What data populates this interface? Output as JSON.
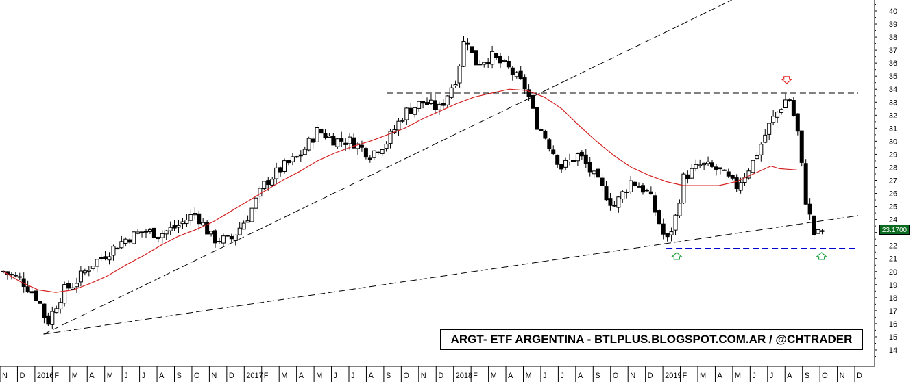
{
  "watermark": "ARGT- ETF ARGENTINA - BTLPLUS.BLOGSPOT.COM.AR / @CHTRADER",
  "last_price_label": "23.1700",
  "chart_data": {
    "type": "candlestick",
    "title": "ARGT- ETF ARGENTINA - BTLPLUS.BLOGSPOT.COM.AR / @CHTRADER",
    "ylim": [
      13.5,
      40.5
    ],
    "y_ticks": [
      14,
      15,
      16,
      17,
      18,
      19,
      20,
      21,
      22,
      23,
      24,
      25,
      26,
      27,
      28,
      29,
      30,
      31,
      32,
      33,
      34,
      35,
      36,
      37,
      38,
      39,
      40
    ],
    "grid": false,
    "last_price": 23.17,
    "months": [
      {
        "label": "N",
        "year": null
      },
      {
        "label": "D",
        "year": null
      },
      {
        "label": "2016",
        "year": true
      },
      {
        "label": "F",
        "year": null
      },
      {
        "label": "M",
        "year": null
      },
      {
        "label": "A",
        "year": null
      },
      {
        "label": "M",
        "year": null
      },
      {
        "label": "J",
        "year": null
      },
      {
        "label": "J",
        "year": null
      },
      {
        "label": "A",
        "year": null
      },
      {
        "label": "S",
        "year": null
      },
      {
        "label": "O",
        "year": null
      },
      {
        "label": "N",
        "year": null
      },
      {
        "label": "D",
        "year": null
      },
      {
        "label": "2017",
        "year": true
      },
      {
        "label": "F",
        "year": null
      },
      {
        "label": "M",
        "year": null
      },
      {
        "label": "A",
        "year": null
      },
      {
        "label": "M",
        "year": null
      },
      {
        "label": "J",
        "year": null
      },
      {
        "label": "J",
        "year": null
      },
      {
        "label": "A",
        "year": null
      },
      {
        "label": "S",
        "year": null
      },
      {
        "label": "O",
        "year": null
      },
      {
        "label": "N",
        "year": null
      },
      {
        "label": "D",
        "year": null
      },
      {
        "label": "2018",
        "year": true
      },
      {
        "label": "F",
        "year": null
      },
      {
        "label": "M",
        "year": null
      },
      {
        "label": "A",
        "year": null
      },
      {
        "label": "M",
        "year": null
      },
      {
        "label": "J",
        "year": null
      },
      {
        "label": "J",
        "year": null
      },
      {
        "label": "A",
        "year": null
      },
      {
        "label": "S",
        "year": null
      },
      {
        "label": "O",
        "year": null
      },
      {
        "label": "N",
        "year": null
      },
      {
        "label": "D",
        "year": null
      },
      {
        "label": "2019",
        "year": true
      },
      {
        "label": "F",
        "year": null
      },
      {
        "label": "M",
        "year": null
      },
      {
        "label": "A",
        "year": null
      },
      {
        "label": "M",
        "year": null
      },
      {
        "label": "J",
        "year": null
      },
      {
        "label": "J",
        "year": null
      },
      {
        "label": "A",
        "year": null
      },
      {
        "label": "S",
        "year": null
      },
      {
        "label": "O",
        "year": null
      },
      {
        "label": "N",
        "year": null
      },
      {
        "label": "D",
        "year": null
      }
    ],
    "close_path": [
      [
        0,
        20.0
      ],
      [
        1,
        19.4
      ],
      [
        2,
        17.9
      ],
      [
        2.5,
        16.0
      ],
      [
        3,
        17.4
      ],
      [
        3.5,
        18.6
      ],
      [
        4,
        19.0
      ],
      [
        5,
        20.5
      ],
      [
        6,
        21.5
      ],
      [
        7,
        22.5
      ],
      [
        8,
        23.1
      ],
      [
        9,
        22.9
      ],
      [
        10,
        23.5
      ],
      [
        11,
        24.5
      ],
      [
        12,
        22.5
      ],
      [
        13,
        22.4
      ],
      [
        14,
        24.2
      ],
      [
        14.5,
        25.5
      ],
      [
        15,
        26.8
      ],
      [
        16,
        28.0
      ],
      [
        17,
        28.9
      ],
      [
        18,
        30.8
      ],
      [
        19,
        30.1
      ],
      [
        20,
        30.0
      ],
      [
        21,
        29.0
      ],
      [
        22,
        30.0
      ],
      [
        23,
        32.2
      ],
      [
        24,
        33.0
      ],
      [
        25,
        32.5
      ],
      [
        26,
        35.0
      ],
      [
        26.5,
        38.3
      ],
      [
        27,
        36.0
      ],
      [
        28,
        36.5
      ],
      [
        29,
        35.5
      ],
      [
        30,
        34.0
      ],
      [
        30.5,
        31.5
      ],
      [
        31,
        30.5
      ],
      [
        32,
        28.0
      ],
      [
        33,
        29.0
      ],
      [
        34,
        27.0
      ],
      [
        35,
        25.0
      ],
      [
        36,
        27.0
      ],
      [
        37,
        26.0
      ],
      [
        38,
        22.2
      ],
      [
        38.5,
        24.0
      ],
      [
        39,
        27.2
      ],
      [
        40,
        28.2
      ],
      [
        41,
        27.8
      ],
      [
        42,
        26.5
      ],
      [
        43,
        28.5
      ],
      [
        44,
        31.5
      ],
      [
        45,
        33.5
      ],
      [
        45.5,
        31.0
      ],
      [
        46,
        25.5
      ],
      [
        46.5,
        22.7
      ],
      [
        47,
        23.17
      ]
    ],
    "ma_path": [
      [
        0,
        20.0
      ],
      [
        1,
        19.2
      ],
      [
        2,
        18.6
      ],
      [
        3,
        18.4
      ],
      [
        4,
        18.6
      ],
      [
        5,
        19.1
      ],
      [
        6,
        19.7
      ],
      [
        7,
        20.5
      ],
      [
        8,
        21.2
      ],
      [
        9,
        22.0
      ],
      [
        10,
        22.7
      ],
      [
        11,
        23.2
      ],
      [
        12,
        23.8
      ],
      [
        13,
        24.6
      ],
      [
        14,
        25.4
      ],
      [
        15,
        26.2
      ],
      [
        16,
        27.0
      ],
      [
        17,
        27.7
      ],
      [
        18,
        28.5
      ],
      [
        19,
        29.1
      ],
      [
        20,
        29.6
      ],
      [
        21,
        30.0
      ],
      [
        22,
        30.5
      ],
      [
        23,
        31.0
      ],
      [
        24,
        31.7
      ],
      [
        25,
        32.3
      ],
      [
        26,
        32.9
      ],
      [
        27,
        33.4
      ],
      [
        28,
        33.7
      ],
      [
        29,
        34.0
      ],
      [
        30,
        33.9
      ],
      [
        31,
        33.4
      ],
      [
        32,
        32.5
      ],
      [
        33,
        31.2
      ],
      [
        34,
        30.0
      ],
      [
        35,
        28.9
      ],
      [
        36,
        28.0
      ],
      [
        37,
        27.4
      ],
      [
        38,
        26.9
      ],
      [
        39,
        26.6
      ],
      [
        40,
        26.6
      ],
      [
        41,
        26.6
      ],
      [
        42,
        26.9
      ],
      [
        43,
        27.5
      ],
      [
        44,
        28.1
      ],
      [
        44.5,
        27.9
      ],
      [
        45.5,
        27.8
      ]
    ],
    "lines": [
      {
        "name": "resistance",
        "kind": "horizontal",
        "value": 33.7,
        "from": 22,
        "to": 49,
        "style": "dashed",
        "color": "#000000"
      },
      {
        "name": "support",
        "kind": "horizontal",
        "value": 21.8,
        "from": 38,
        "to": 49,
        "style": "dashed",
        "color": "#0000cc"
      },
      {
        "name": "trend-long-1",
        "kind": "segment",
        "points": [
          [
            2.3,
            15.2
          ],
          [
            42,
            41.0
          ]
        ],
        "style": "dashed",
        "color": "#000000"
      },
      {
        "name": "trend-long-2",
        "kind": "segment",
        "points": [
          [
            2.3,
            15.2
          ],
          [
            49,
            24.3
          ]
        ],
        "style": "dashed",
        "color": "#000000"
      }
    ],
    "markers": [
      {
        "name": "down-arrow",
        "x": 44.9,
        "y": 34.7,
        "direction": "down",
        "color": "#e02020"
      },
      {
        "name": "up-arrow-1",
        "x": 38.6,
        "y": 21.2,
        "direction": "up",
        "color": "#20a040"
      },
      {
        "name": "up-arrow-2",
        "x": 46.9,
        "y": 21.2,
        "direction": "up",
        "color": "#20a040"
      }
    ]
  }
}
